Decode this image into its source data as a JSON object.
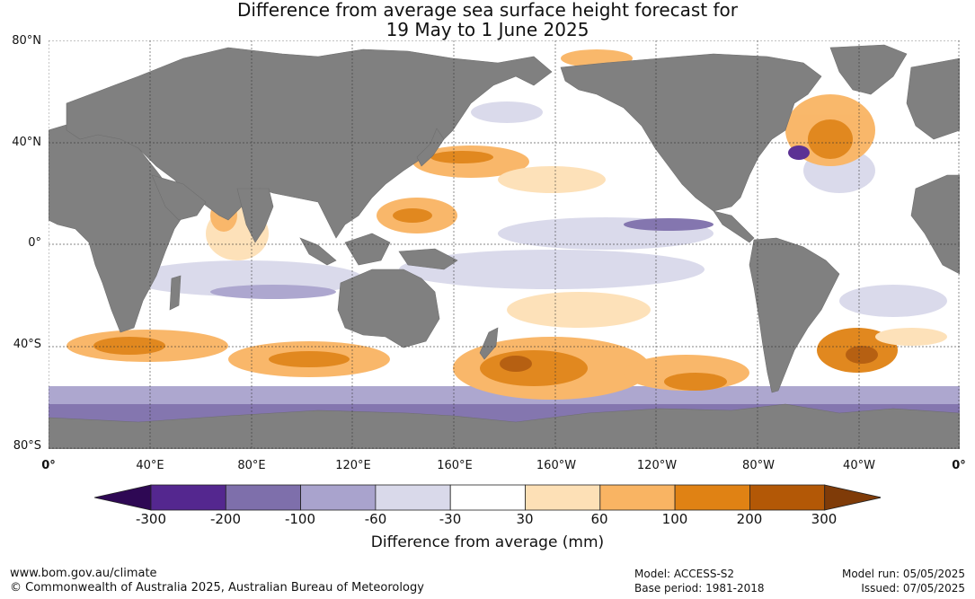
{
  "title_line1": "Difference from average sea surface height forecast for",
  "title_line2": "19 May to 1 June 2025",
  "lat_labels": [
    "80°N",
    "40°N",
    "0°",
    "40°S",
    "80°S"
  ],
  "lon_labels": [
    "0°",
    "40°E",
    "80°E",
    "120°E",
    "160°E",
    "160°W",
    "120°W",
    "80°W",
    "40°W",
    "0°"
  ],
  "colorbar": {
    "ticks": [
      "-300",
      "-200",
      "-100",
      "-60",
      "-30",
      "30",
      "60",
      "100",
      "200",
      "300"
    ],
    "colors": [
      "#2e0854",
      "#54278f",
      "#7e6fab",
      "#a9a3cd",
      "#d9d9ea",
      "#ffffff",
      "#fde0b6",
      "#f9b463",
      "#e08214",
      "#b35806",
      "#7f3b08"
    ],
    "label": "Difference from average (mm)"
  },
  "land_color": "#808080",
  "footer": {
    "url": "www.bom.gov.au/climate",
    "copyright": "© Commonwealth of Australia 2025, Australian Bureau of Meteorology",
    "model": "Model: ACCESS-S2",
    "base_period": "Base period: 1981-2018",
    "model_run": "Model run: 05/05/2025",
    "issued": "Issued: 07/05/2025"
  }
}
